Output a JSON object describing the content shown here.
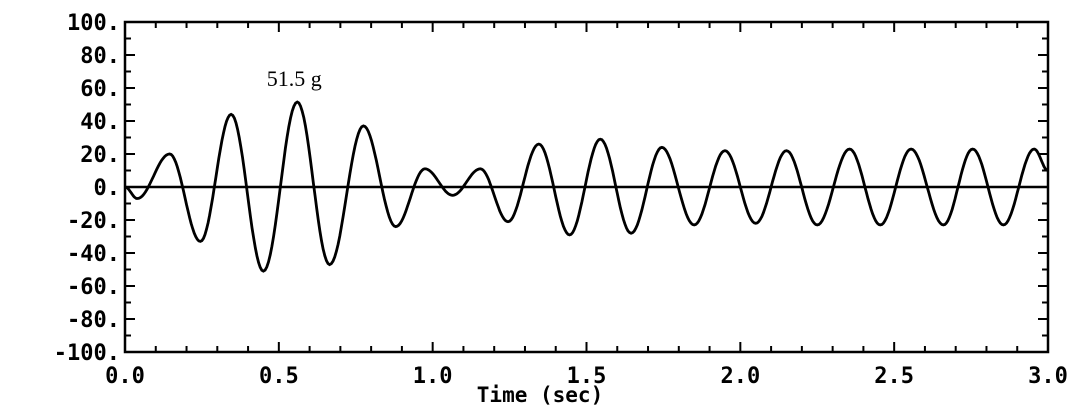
{
  "chart_data": {
    "type": "line",
    "title": "",
    "xlabel": "Time (sec)",
    "ylabel": "",
    "xlim": [
      0.0,
      3.0
    ],
    "ylim": [
      -100,
      100
    ],
    "x_ticks": [
      0.0,
      0.5,
      1.0,
      1.5,
      2.0,
      2.5,
      3.0
    ],
    "x_tick_labels": [
      "0.0",
      "0.5",
      "1.0",
      "1.5",
      "2.0",
      "2.5",
      "3.0"
    ],
    "y_ticks": [
      100,
      80,
      60,
      40,
      20,
      0,
      -20,
      -40,
      -60,
      -80,
      -100
    ],
    "y_tick_labels": [
      "100.",
      "80.",
      "60.",
      "40.",
      "20.",
      "0.",
      "-20.",
      "-40.",
      "-60.",
      "-80.",
      "-100."
    ],
    "grid": false,
    "zero_line": true,
    "annotations": [
      {
        "text": "51.5 g",
        "x": 0.56,
        "y": 51.5
      }
    ],
    "series": [
      {
        "x": [
          0.0,
          0.04,
          0.145,
          0.245,
          0.345,
          0.45,
          0.56,
          0.665,
          0.775,
          0.88,
          0.975,
          1.065,
          1.155,
          1.245,
          1.345,
          1.445,
          1.545,
          1.645,
          1.745,
          1.85,
          1.95,
          2.05,
          2.15,
          2.25,
          2.355,
          2.455,
          2.555,
          2.66,
          2.755,
          2.855,
          2.955,
          3.0
        ],
        "y": [
          0,
          -7,
          20,
          -33,
          44,
          -51,
          51.5,
          -47,
          37,
          -24,
          11,
          -5,
          11,
          -21,
          26,
          -29,
          29,
          -28,
          24,
          -23,
          22,
          -22,
          22,
          -23,
          23,
          -23,
          23,
          -23,
          23,
          -23,
          23,
          10
        ]
      }
    ]
  }
}
